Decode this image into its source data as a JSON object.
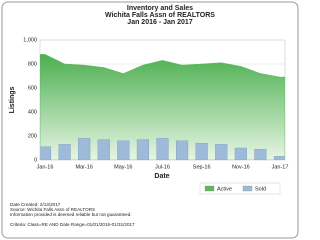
{
  "chart_data": {
    "type": "area-bar",
    "title": "Inventory and Sales",
    "subtitle": [
      "Wichita Falls Assn of REALTORS",
      "Jan 2016 - Jan 2017"
    ],
    "x_label": "Date",
    "y_label": "Listings",
    "categories": [
      "Jan-16",
      null,
      "Mar-16",
      null,
      "May-16",
      null,
      "Jul-16",
      null,
      "Sep-16",
      null,
      "Nov-16",
      null,
      "Jan-17"
    ],
    "series": [
      {
        "name": "Active",
        "color": "#5cb85c",
        "kind": "area",
        "values": [
          880,
          800,
          790,
          770,
          720,
          790,
          830,
          790,
          800,
          810,
          780,
          720,
          690
        ]
      },
      {
        "name": "Sold",
        "color": "#9dbad8",
        "kind": "bar",
        "values": [
          110,
          130,
          180,
          170,
          160,
          170,
          180,
          160,
          140,
          130,
          100,
          90,
          30
        ]
      }
    ],
    "ylim": [
      0,
      1000
    ],
    "yticks": [
      0,
      200,
      400,
      600,
      800,
      {
        "value": 1000,
        "label": "1,000"
      }
    ],
    "grid": true,
    "legend": "bottom-right",
    "notes": [
      "Date Created: 2/13/2017",
      "Source: Wichita Falls Assn of REALTORS",
      "Information provided is deemed reliable but not guaranteed.",
      "Criteria: Class=RE AND Date Range=01/01/2016-01/31/2017"
    ]
  }
}
